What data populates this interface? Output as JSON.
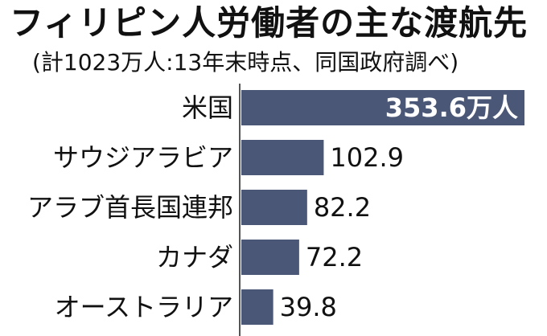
{
  "chart_data": {
    "type": "bar",
    "orientation": "horizontal",
    "title": "フィリピン人労働者の主な渡航先",
    "subtitle": "(計1023万人:13年末時点、同国政府調べ)",
    "categories": [
      "米国",
      "サウジアラビア",
      "アラブ首長国連邦",
      "カナダ",
      "オーストラリア"
    ],
    "values": [
      353.6,
      102.9,
      82.2,
      72.2,
      39.8
    ],
    "data_labels": [
      "353.6万人",
      "102.9",
      "82.2",
      "72.2",
      "39.8"
    ],
    "unit": "万人",
    "xlim": [
      0,
      353.6
    ],
    "bar_color": "#4a5776",
    "grid": false,
    "legend": "none"
  }
}
